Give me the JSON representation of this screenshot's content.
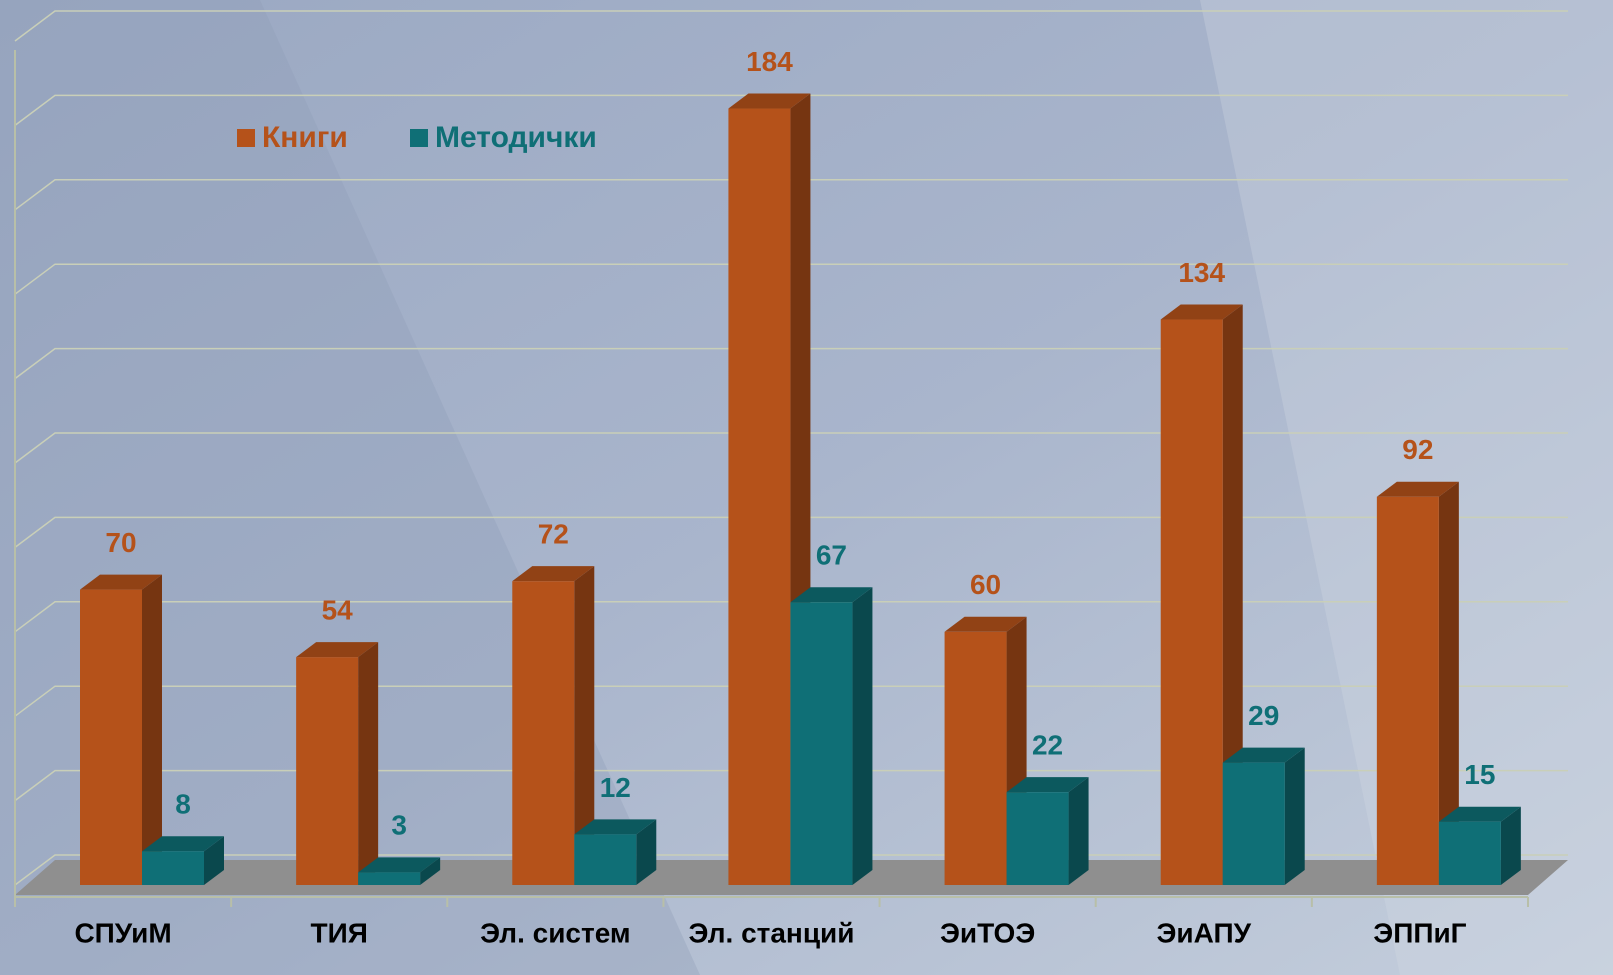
{
  "chart_data": {
    "type": "bar3d",
    "categories": [
      "СПУиМ",
      "ТИЯ",
      "Эл. систем",
      "Эл. станций",
      "ЭиТОЭ",
      "ЭиАПУ",
      "ЭППиГ"
    ],
    "series": [
      {
        "name": "Книги",
        "color": "#b5521a",
        "values": [
          70,
          54,
          72,
          184,
          60,
          134,
          92
        ]
      },
      {
        "name": "Методички",
        "color": "#0f6f76",
        "values": [
          8,
          3,
          12,
          67,
          22,
          29,
          15
        ]
      }
    ],
    "ylim": [
      0,
      200
    ],
    "yticks": [
      0,
      20,
      40,
      60,
      80,
      100,
      120,
      140,
      160,
      180,
      200
    ],
    "grid": true
  }
}
